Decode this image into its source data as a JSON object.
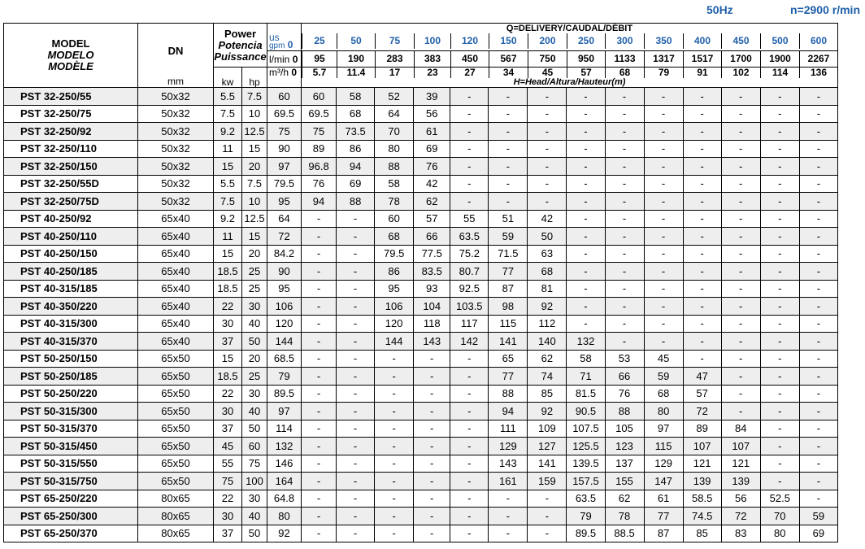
{
  "header": {
    "frequency": "50Hz",
    "speed": "n=2900 r/min"
  },
  "columns": {
    "model": [
      "MODEL",
      "MODELO",
      "MODÈLE"
    ],
    "dn": "DN",
    "dn_unit": "mm",
    "power": [
      "Power",
      "Potencia",
      "Puissance"
    ],
    "kw": "kw",
    "hp": "hp",
    "delivery_title": "Q=DELIVERY/CAUDAL/DÉBIT",
    "head_title": "H=Head/Altura/Hauteur(m)",
    "unit_gpm_top": "us",
    "unit_gpm": "gpm",
    "unit_lmin": "l/min",
    "unit_m3h": "m³/h",
    "gpm": [
      "0",
      "25",
      "50",
      "75",
      "100",
      "120",
      "150",
      "200",
      "250",
      "300",
      "350",
      "400",
      "450",
      "500",
      "600"
    ],
    "lmin": [
      "0",
      "95",
      "190",
      "283",
      "383",
      "450",
      "567",
      "750",
      "950",
      "1133",
      "1317",
      "1517",
      "1700",
      "1900",
      "2267"
    ],
    "m3h": [
      "0",
      "5.7",
      "11.4",
      "17",
      "23",
      "27",
      "34",
      "45",
      "57",
      "68",
      "79",
      "91",
      "102",
      "114",
      "136"
    ]
  },
  "rows": [
    {
      "model": "PST 32-250/55",
      "dn": "50x32",
      "kw": "5.5",
      "hp": "7.5",
      "h": [
        "60",
        "60",
        "58",
        "52",
        "39",
        "-",
        "-",
        "-",
        "-",
        "-",
        "-",
        "-",
        "-",
        "-",
        "-"
      ]
    },
    {
      "model": "PST 32-250/75",
      "dn": "50x32",
      "kw": "7.5",
      "hp": "10",
      "h": [
        "69.5",
        "69.5",
        "68",
        "64",
        "56",
        "-",
        "-",
        "-",
        "-",
        "-",
        "-",
        "-",
        "-",
        "-",
        "-"
      ]
    },
    {
      "model": "PST 32-250/92",
      "dn": "50x32",
      "kw": "9.2",
      "hp": "12.5",
      "h": [
        "75",
        "75",
        "73.5",
        "70",
        "61",
        "-",
        "-",
        "-",
        "-",
        "-",
        "-",
        "-",
        "-",
        "-",
        "-"
      ]
    },
    {
      "model": "PST 32-250/110",
      "dn": "50x32",
      "kw": "11",
      "hp": "15",
      "h": [
        "90",
        "89",
        "86",
        "80",
        "69",
        "-",
        "-",
        "-",
        "-",
        "-",
        "-",
        "-",
        "-",
        "-",
        "-"
      ]
    },
    {
      "model": "PST 32-250/150",
      "dn": "50x32",
      "kw": "15",
      "hp": "20",
      "h": [
        "97",
        "96.8",
        "94",
        "88",
        "76",
        "-",
        "-",
        "-",
        "-",
        "-",
        "-",
        "-",
        "-",
        "-",
        "-"
      ]
    },
    {
      "model": "PST 32-250/55D",
      "dn": "50x32",
      "kw": "5.5",
      "hp": "7.5",
      "h": [
        "79.5",
        "76",
        "69",
        "58",
        "42",
        "-",
        "-",
        "-",
        "-",
        "-",
        "-",
        "-",
        "-",
        "-",
        "-"
      ]
    },
    {
      "model": "PST 32-250/75D",
      "dn": "50x32",
      "kw": "7.5",
      "hp": "10",
      "h": [
        "95",
        "94",
        "88",
        "78",
        "62",
        "-",
        "-",
        "-",
        "-",
        "-",
        "-",
        "-",
        "-",
        "-",
        "-"
      ]
    },
    {
      "model": "PST 40-250/92",
      "dn": "65x40",
      "kw": "9.2",
      "hp": "12.5",
      "h": [
        "64",
        "-",
        "-",
        "60",
        "57",
        "55",
        "51",
        "42",
        "-",
        "-",
        "-",
        "-",
        "-",
        "-",
        "-"
      ]
    },
    {
      "model": "PST 40-250/110",
      "dn": "65x40",
      "kw": "11",
      "hp": "15",
      "h": [
        "72",
        "-",
        "-",
        "68",
        "66",
        "63.5",
        "59",
        "50",
        "-",
        "-",
        "-",
        "-",
        "-",
        "-",
        "-"
      ]
    },
    {
      "model": "PST 40-250/150",
      "dn": "65x40",
      "kw": "15",
      "hp": "20",
      "h": [
        "84.2",
        "-",
        "-",
        "79.5",
        "77.5",
        "75.2",
        "71.5",
        "63",
        "-",
        "-",
        "-",
        "-",
        "-",
        "-",
        "-"
      ]
    },
    {
      "model": "PST 40-250/185",
      "dn": "65x40",
      "kw": "18.5",
      "hp": "25",
      "h": [
        "90",
        "-",
        "-",
        "86",
        "83.5",
        "80.7",
        "77",
        "68",
        "-",
        "-",
        "-",
        "-",
        "-",
        "-",
        "-"
      ]
    },
    {
      "model": "PST  40-315/185",
      "dn": "65x40",
      "kw": "18.5",
      "hp": "25",
      "h": [
        "95",
        "-",
        "-",
        "95",
        "93",
        "92.5",
        "87",
        "81",
        "-",
        "-",
        "-",
        "-",
        "-",
        "-",
        "-"
      ]
    },
    {
      "model": "PST  40-350/220",
      "dn": "65x40",
      "kw": "22",
      "hp": "30",
      "h": [
        "106",
        "-",
        "-",
        "106",
        "104",
        "103.5",
        "98",
        "92",
        "-",
        "-",
        "-",
        "-",
        "-",
        "-",
        "-"
      ]
    },
    {
      "model": "PST  40-315/300",
      "dn": "65x40",
      "kw": "30",
      "hp": "40",
      "h": [
        "120",
        "-",
        "-",
        "120",
        "118",
        "117",
        "115",
        "112",
        "-",
        "-",
        "-",
        "-",
        "-",
        "-",
        "-"
      ]
    },
    {
      "model": "PST  40-315/370",
      "dn": "65x40",
      "kw": "37",
      "hp": "50",
      "h": [
        "144",
        "-",
        "-",
        "144",
        "143",
        "142",
        "141",
        "140",
        "132",
        "-",
        "-",
        "-",
        "-",
        "-",
        "-"
      ]
    },
    {
      "model": "PST 50-250/150",
      "dn": "65x50",
      "kw": "15",
      "hp": "20",
      "h": [
        "68.5",
        "-",
        "-",
        "-",
        "-",
        "-",
        "65",
        "62",
        "58",
        "53",
        "45",
        "-",
        "-",
        "-",
        "-"
      ]
    },
    {
      "model": "PST 50-250/185",
      "dn": "65x50",
      "kw": "18.5",
      "hp": "25",
      "h": [
        "79",
        "-",
        "-",
        "-",
        "-",
        "-",
        "77",
        "74",
        "71",
        "66",
        "59",
        "47",
        "-",
        "-",
        "-"
      ]
    },
    {
      "model": "PST 50-250/220",
      "dn": "65x50",
      "kw": "22",
      "hp": "30",
      "h": [
        "89.5",
        "-",
        "-",
        "-",
        "-",
        "-",
        "88",
        "85",
        "81.5",
        "76",
        "68",
        "57",
        "-",
        "-",
        "-"
      ]
    },
    {
      "model": "PST 50-315/300",
      "dn": "65x50",
      "kw": "30",
      "hp": "40",
      "h": [
        "97",
        "-",
        "-",
        "-",
        "-",
        "-",
        "94",
        "92",
        "90.5",
        "88",
        "80",
        "72",
        "-",
        "-",
        "-"
      ]
    },
    {
      "model": "PST 50-315/370",
      "dn": "65x50",
      "kw": "37",
      "hp": "50",
      "h": [
        "114",
        "-",
        "-",
        "-",
        "-",
        "-",
        "111",
        "109",
        "107.5",
        "105",
        "97",
        "89",
        "84",
        "-",
        "-"
      ]
    },
    {
      "model": "PST 50-315/450",
      "dn": "65x50",
      "kw": "45",
      "hp": "60",
      "h": [
        "132",
        "-",
        "-",
        "-",
        "-",
        "-",
        "129",
        "127",
        "125.5",
        "123",
        "115",
        "107",
        "107",
        "-",
        "-"
      ]
    },
    {
      "model": "PST 50-315/550",
      "dn": "65x50",
      "kw": "55",
      "hp": "75",
      "h": [
        "146",
        "-",
        "-",
        "-",
        "-",
        "-",
        "143",
        "141",
        "139.5",
        "137",
        "129",
        "121",
        "121",
        "-",
        "-"
      ]
    },
    {
      "model": "PST 50-315/750",
      "dn": "65x50",
      "kw": "75",
      "hp": "100",
      "h": [
        "164",
        "-",
        "-",
        "-",
        "-",
        "-",
        "161",
        "159",
        "157.5",
        "155",
        "147",
        "139",
        "139",
        "-",
        "-"
      ]
    },
    {
      "model": "PST 65-250/220",
      "dn": "80x65",
      "kw": "22",
      "hp": "30",
      "h": [
        "64.8",
        "-",
        "-",
        "-",
        "-",
        "-",
        "-",
        "-",
        "63.5",
        "62",
        "61",
        "58.5",
        "56",
        "52.5",
        "-"
      ]
    },
    {
      "model": "PST 65-250/300",
      "dn": "80x65",
      "kw": "30",
      "hp": "40",
      "h": [
        "80",
        "-",
        "-",
        "-",
        "-",
        "-",
        "-",
        "-",
        "79",
        "78",
        "77",
        "74.5",
        "72",
        "70",
        "59"
      ]
    },
    {
      "model": "PST 65-250/370",
      "dn": "80x65",
      "kw": "37",
      "hp": "50",
      "h": [
        "92",
        "-",
        "-",
        "-",
        "-",
        "-",
        "-",
        "-",
        "89.5",
        "88.5",
        "87",
        "85",
        "83",
        "80",
        "69"
      ]
    }
  ],
  "group_starts": [
    7,
    15,
    23
  ],
  "colors": {
    "accent": "#1f5fa8",
    "alt_row": "#eeeeee"
  }
}
